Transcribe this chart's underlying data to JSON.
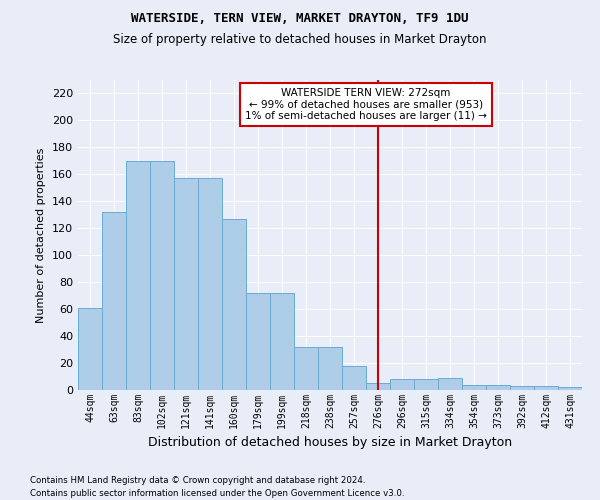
{
  "title": "WATERSIDE, TERN VIEW, MARKET DRAYTON, TF9 1DU",
  "subtitle": "Size of property relative to detached houses in Market Drayton",
  "xlabel": "Distribution of detached houses by size in Market Drayton",
  "ylabel": "Number of detached properties",
  "footer_line1": "Contains HM Land Registry data © Crown copyright and database right 2024.",
  "footer_line2": "Contains public sector information licensed under the Open Government Licence v3.0.",
  "bar_labels": [
    "44sqm",
    "63sqm",
    "83sqm",
    "102sqm",
    "121sqm",
    "141sqm",
    "160sqm",
    "179sqm",
    "199sqm",
    "218sqm",
    "238sqm",
    "257sqm",
    "276sqm",
    "296sqm",
    "315sqm",
    "334sqm",
    "354sqm",
    "373sqm",
    "392sqm",
    "412sqm",
    "431sqm"
  ],
  "bar_values": [
    61,
    132,
    170,
    170,
    157,
    157,
    127,
    72,
    72,
    32,
    32,
    18,
    5,
    8,
    8,
    9,
    4,
    4,
    3,
    3,
    2
  ],
  "bar_color": "#aecde8",
  "bar_edge_color": "#6aaad4",
  "fig_bg_color": "#e8edf8",
  "ax_bg_color": "#e8edf8",
  "grid_color": "#ffffff",
  "vline_x_index": 12,
  "vline_color": "#cc0000",
  "annotation_title": "WATERSIDE TERN VIEW: 272sqm",
  "annotation_line1": "← 99% of detached houses are smaller (953)",
  "annotation_line2": "1% of semi-detached houses are larger (11) →",
  "annotation_box_color": "#ffffff",
  "annotation_border_color": "#cc0000",
  "ylim": [
    0,
    230
  ],
  "yticks": [
    0,
    20,
    40,
    60,
    80,
    100,
    120,
    140,
    160,
    180,
    200,
    220
  ]
}
